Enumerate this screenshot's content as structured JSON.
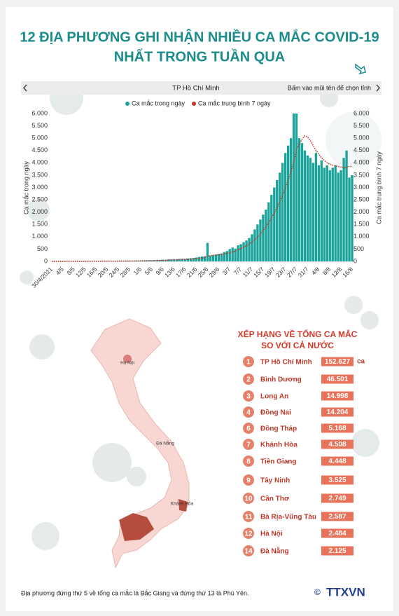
{
  "title": [
    "12 ĐỊA PHƯƠNG GHI NHẬN NHIỀU CA MẮC COVID-19",
    "NHẤT TRONG TUẦN QUA"
  ],
  "selector": {
    "province": "TP Hồ Chí Minh",
    "hint": "Bấm vào mũi tên để chọn tỉnh"
  },
  "chart_data": {
    "type": "bar",
    "y_label": "Ca mắc trong ngày",
    "y2_label": "Ca mắc trung bình 7 ngày",
    "categories": [
      "30/4/2021",
      null,
      null,
      null,
      "4/5",
      null,
      null,
      null,
      "8/5",
      null,
      null,
      null,
      "12/5",
      null,
      null,
      null,
      "16/5",
      null,
      null,
      null,
      "20/5",
      null,
      null,
      null,
      "24/5",
      null,
      null,
      null,
      "28/5",
      null,
      null,
      null,
      "1/6",
      null,
      null,
      null,
      "5/6",
      null,
      null,
      null,
      "9/6",
      null,
      null,
      null,
      "13/6",
      null,
      null,
      null,
      "17/6",
      null,
      null,
      null,
      "21/6",
      null,
      null,
      null,
      "25/6",
      null,
      null,
      null,
      "29/6",
      null,
      null,
      null,
      "3/7",
      null,
      null,
      null,
      "7/7",
      null,
      null,
      null,
      "11/7",
      null,
      null,
      null,
      "15/7",
      null,
      null,
      null,
      "19/7",
      null,
      null,
      null,
      "23/7",
      null,
      null,
      null,
      "27/7",
      null,
      null,
      null,
      "31/7",
      null,
      null,
      null,
      "4/8",
      null,
      null,
      null,
      "8/8",
      null,
      null,
      null,
      "12/8",
      null,
      null,
      null,
      "16/8"
    ],
    "series": [
      {
        "name": "Ca mắc trong ngày",
        "type": "bar",
        "color": "#1aa39a",
        "values": [
          0,
          2,
          0,
          5,
          3,
          0,
          8,
          4,
          2,
          6,
          10,
          3,
          5,
          9,
          4,
          12,
          8,
          6,
          15,
          10,
          7,
          5,
          12,
          9,
          14,
          20,
          11,
          16,
          25,
          18,
          30,
          22,
          35,
          28,
          40,
          45,
          38,
          50,
          60,
          55,
          70,
          65,
          80,
          75,
          90,
          85,
          100,
          110,
          95,
          120,
          130,
          140,
          160,
          180,
          200,
          210,
          750,
          230,
          260,
          280,
          300,
          320,
          380,
          420,
          500,
          560,
          520,
          650,
          700,
          780,
          850,
          950,
          1100,
          1300,
          1500,
          1700,
          1900,
          2100,
          2400,
          2700,
          3000,
          3300,
          3600,
          4000,
          4400,
          4700,
          5000,
          6000,
          6000,
          5000,
          4800,
          4500,
          4300,
          4200,
          4000,
          4400,
          3900,
          4100,
          3800,
          3900,
          3700,
          3800,
          3900,
          3600,
          3700,
          4200,
          4500,
          3400,
          3500
        ]
      },
      {
        "name": "Ca mắc trung bình 7 ngày",
        "type": "line",
        "axis": "y2",
        "color": "#c0392b",
        "values": [
          3,
          3,
          3,
          3,
          3,
          3,
          4,
          4,
          4,
          4,
          5,
          5,
          5,
          6,
          6,
          7,
          7,
          7,
          8,
          8,
          9,
          9,
          9,
          10,
          11,
          12,
          12,
          13,
          15,
          16,
          18,
          19,
          21,
          23,
          25,
          28,
          30,
          33,
          37,
          40,
          45,
          48,
          53,
          58,
          63,
          68,
          72,
          77,
          82,
          88,
          95,
          100,
          110,
          122,
          135,
          147,
          220,
          232,
          245,
          260,
          270,
          280,
          300,
          325,
          350,
          385,
          420,
          470,
          520,
          580,
          640,
          700,
          790,
          880,
          990,
          1110,
          1250,
          1400,
          1570,
          1760,
          1960,
          2170,
          2420,
          2680,
          2970,
          3280,
          3630,
          4050,
          4550,
          4750,
          4960,
          5100,
          5050,
          4900,
          4700,
          4500,
          4350,
          4200,
          4100,
          4000,
          3950,
          3900,
          3880,
          3850,
          3830,
          3800,
          3790,
          3860,
          3850
        ]
      }
    ],
    "ylim": [
      0,
      6000
    ],
    "yticks": [
      0,
      500,
      {
        "value": 1000,
        "label": "1.000"
      },
      {
        "value": 1500,
        "label": "1.500"
      },
      {
        "value": 2000,
        "label": "2.000"
      },
      {
        "value": 2500,
        "label": "2.500"
      },
      {
        "value": 3000,
        "label": "3.000"
      },
      {
        "value": 3500,
        "label": "3.500"
      },
      {
        "value": 4000,
        "label": "4.000"
      },
      {
        "value": 4500,
        "label": "4.500"
      },
      {
        "value": 5000,
        "label": "5.000"
      },
      {
        "value": 5500,
        "label": "5.500"
      },
      {
        "value": 6000,
        "label": "6.000"
      }
    ],
    "y2lim": [
      0,
      6000
    ],
    "y2ticks": [
      0,
      500,
      {
        "value": 1000,
        "label": "1.000"
      },
      {
        "value": 1500,
        "label": "1.500"
      },
      {
        "value": 2000,
        "label": "2.000"
      },
      {
        "value": 2500,
        "label": "2.500"
      },
      {
        "value": 3000,
        "label": "3.000"
      },
      {
        "value": 3500,
        "label": "3.500"
      },
      {
        "value": 4000,
        "label": "4.000"
      },
      {
        "value": 4500,
        "label": "4.500"
      },
      {
        "value": 5000,
        "label": "5.000"
      },
      {
        "value": 5500,
        "label": "5.500"
      },
      {
        "value": 6000,
        "label": "6.000"
      }
    ],
    "grid": false,
    "legend": "top"
  },
  "ranking": {
    "heading": [
      "XẾP HẠNG VỀ TỔNG CA MẮC",
      "SO VỚI CẢ NƯỚC"
    ],
    "unit": "ca",
    "items": [
      {
        "rank": "1",
        "name": "TP Hồ Chí Minh",
        "value": "152.627"
      },
      {
        "rank": "2",
        "name": "Bình Dương",
        "value": "46.501"
      },
      {
        "rank": "3",
        "name": "Long An",
        "value": "14.998"
      },
      {
        "rank": "4",
        "name": "Đồng Nai",
        "value": "14.204"
      },
      {
        "rank": "6",
        "name": "Đồng Tháp",
        "value": "5.168"
      },
      {
        "rank": "7",
        "name": "Khánh Hòa",
        "value": "4.508"
      },
      {
        "rank": "8",
        "name": "Tiền Giang",
        "value": "4.448"
      },
      {
        "rank": "9",
        "name": "Tây Ninh",
        "value": "3.525"
      },
      {
        "rank": "10",
        "name": "Cần Thơ",
        "value": "2.749"
      },
      {
        "rank": "11",
        "name": "Bà Rịa-Vũng Tàu",
        "value": "2.587"
      },
      {
        "rank": "12",
        "name": "Hà Nội",
        "value": "2.484"
      },
      {
        "rank": "14",
        "name": "Đà Nẵng",
        "value": "2.125"
      }
    ]
  },
  "map_labels": [
    "Hà Nội",
    "Đà Nẵng",
    "Khánh Hòa"
  ],
  "footnote": "Địa phương đứng thứ 5 về tổng ca mắc là Bắc Giang và đứng thứ 13 là Phú Yên.",
  "logo": "TTXVN"
}
